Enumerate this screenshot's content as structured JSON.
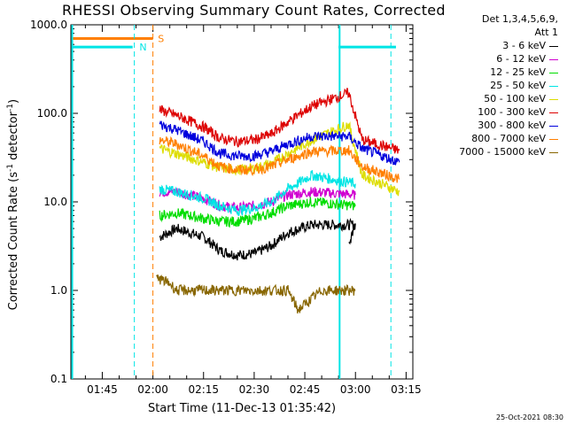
{
  "chart_data": {
    "type": "line",
    "title": "RHESSI Observing Summary Count Rates, Corrected",
    "xlabel": "Start Time (11-Dec-13 01:35:42)",
    "ylabel_main": "Corrected Count Rate (s",
    "ylabel_sup1": "-1",
    "ylabel_mid": " detector",
    "ylabel_sup2": "-1",
    "ylabel_end": ")",
    "y_scale": "log",
    "ylim": [
      0.1,
      1000
    ],
    "y_ticks": [
      "0.1",
      "1.0",
      "10.0",
      "100.0",
      "1000.0"
    ],
    "y_tick_values": [
      0.1,
      1,
      10,
      100,
      1000
    ],
    "xlim_minutes": [
      95.7,
      197
    ],
    "x_ticks": [
      "01:45",
      "02:00",
      "02:15",
      "02:30",
      "02:45",
      "03:00",
      "03:15"
    ],
    "x_tick_minutes": [
      105,
      120,
      135,
      150,
      165,
      180,
      195
    ],
    "legend_header": [
      "Det 1,3,4,5,6,9,",
      "Att 1"
    ],
    "annotations": {
      "S": {
        "label": "S",
        "color": "#ff7f00"
      },
      "N": {
        "label": "N",
        "color": "#00e5e5"
      }
    },
    "series": [
      {
        "name": "3 - 6 keV",
        "color": "#000000",
        "values": [
          4,
          5,
          4,
          2.8,
          2.5,
          2.6,
          3.2,
          4.5,
          5.5,
          5.5,
          3.5
        ],
        "x": [
          122,
          127,
          135,
          140,
          145,
          150,
          155,
          160,
          167,
          180,
          178
        ]
      },
      {
        "name": "6 - 12 keV",
        "color": "#d000d0",
        "values": [
          13,
          13,
          11,
          9,
          8.5,
          9,
          10,
          12,
          13,
          12
        ],
        "x": [
          122,
          127,
          135,
          140,
          145,
          150,
          155,
          160,
          167,
          180
        ]
      },
      {
        "name": "12 - 25 keV",
        "color": "#00dd00",
        "values": [
          7,
          7.5,
          6.5,
          6,
          6,
          6.5,
          7.5,
          9,
          10,
          9
        ],
        "x": [
          122,
          127,
          135,
          140,
          145,
          150,
          155,
          160,
          167,
          180
        ]
      },
      {
        "name": "25 - 50 keV",
        "color": "#00e5e5",
        "values": [
          14,
          13,
          11,
          9,
          8,
          8.5,
          10,
          14,
          20,
          16
        ],
        "x": [
          122,
          127,
          135,
          140,
          145,
          150,
          155,
          160,
          167,
          180
        ]
      },
      {
        "name": "50 - 100 keV",
        "color": "#dddd00",
        "values": [
          40,
          35,
          28,
          24,
          23,
          24,
          27,
          35,
          50,
          75,
          20,
          13
        ],
        "x": [
          122,
          127,
          135,
          140,
          145,
          150,
          155,
          160,
          167,
          178,
          182,
          193
        ]
      },
      {
        "name": "100 - 300 keV",
        "color": "#dd0000",
        "values": [
          110,
          95,
          70,
          52,
          48,
          50,
          58,
          80,
          120,
          170,
          50,
          38
        ],
        "x": [
          122,
          127,
          135,
          140,
          145,
          150,
          155,
          160,
          167,
          178,
          182,
          193
        ]
      },
      {
        "name": "300 - 800 keV",
        "color": "#0000dd",
        "values": [
          75,
          65,
          48,
          35,
          33,
          33,
          37,
          45,
          55,
          55,
          40,
          28
        ],
        "x": [
          122,
          127,
          135,
          140,
          145,
          150,
          155,
          160,
          167,
          178,
          182,
          193
        ]
      },
      {
        "name": "800 - 7000 keV",
        "color": "#ff7f00",
        "values": [
          50,
          45,
          33,
          25,
          23,
          23,
          25,
          30,
          37,
          38,
          25,
          18
        ],
        "x": [
          122,
          127,
          135,
          140,
          145,
          150,
          155,
          160,
          167,
          178,
          182,
          193
        ]
      },
      {
        "name": "7000 - 15000 keV",
        "color": "#886600",
        "values": [
          1.4,
          1.2,
          1.0,
          1.0,
          1.0,
          1.0,
          0.6,
          1.0,
          1.0
        ],
        "x": [
          121,
          125,
          127,
          130,
          150,
          160,
          163,
          170,
          180
        ]
      }
    ]
  },
  "timestamp": "25-Oct-2021 08:30"
}
